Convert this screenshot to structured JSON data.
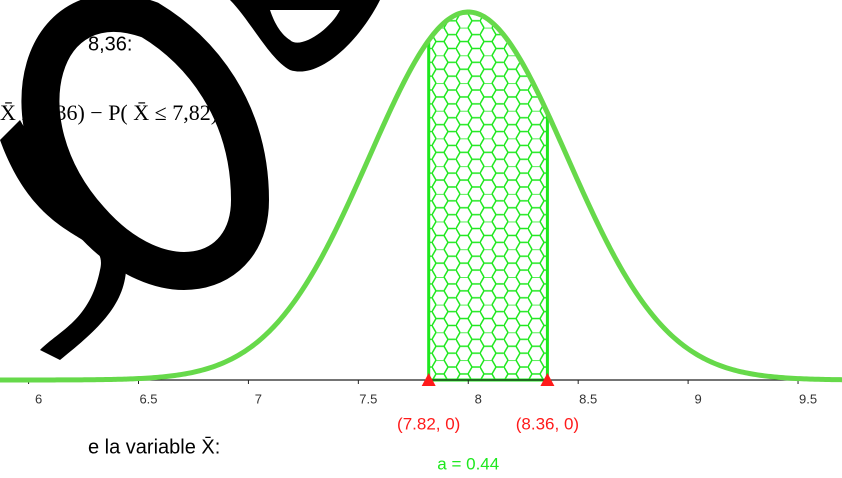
{
  "text": {
    "top": "8,36:",
    "formula": "X̄  ≤ 8,36) − P( X̄ ≤ 7,82)",
    "bottom": "e la variable X̄:"
  },
  "chart_data": {
    "type": "normal",
    "mean": 8,
    "sd": 0.45,
    "xlim": [
      5.87,
      9.7
    ],
    "xticks": [
      6,
      6.5,
      7,
      7.5,
      8,
      8.5,
      9,
      9.5
    ],
    "curve_color": "#66d94a",
    "region_color": "#1ee81e",
    "point_color": "#ff1a1a",
    "region": [
      7.82,
      8.36
    ],
    "points": [
      {
        "x": 7.82,
        "label": "(7.82, 0)"
      },
      {
        "x": 8.36,
        "label": "(8.36, 0)"
      }
    ],
    "area_label": "a = 0.44"
  }
}
